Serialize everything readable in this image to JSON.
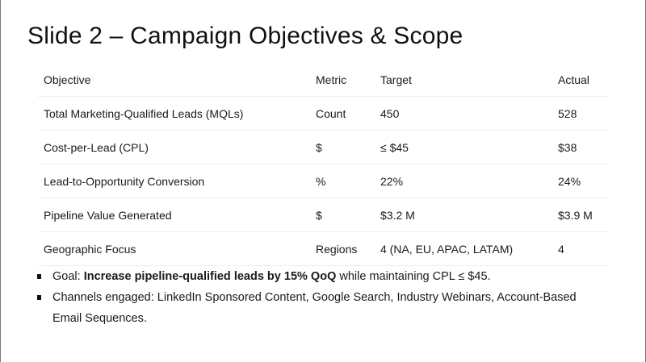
{
  "title": "Slide 2 – Campaign Objectives & Scope",
  "table": {
    "headers": [
      "Objective",
      "Metric",
      "Target",
      "Actual"
    ],
    "rows": [
      [
        "Total Marketing-Qualified Leads (MQLs)",
        "Count",
        "450",
        "528"
      ],
      [
        "Cost-per-Lead (CPL)",
        "$",
        "≤ $45",
        "$38"
      ],
      [
        "Lead-to-Opportunity Conversion",
        "%",
        "22%",
        "24%"
      ],
      [
        "Pipeline Value Generated",
        "$",
        "$3.2 M",
        "$3.9 M"
      ],
      [
        "Geographic Focus",
        "Regions",
        "4 (NA, EU, APAC, LATAM)",
        "4"
      ]
    ]
  },
  "bullets": {
    "goal_prefix": "Goal: ",
    "goal_bold": "Increase pipeline-qualified leads by 15% QoQ",
    "goal_suffix": " while maintaining CPL ≤ $45.",
    "channels": "Channels engaged: LinkedIn Sponsored Content, Google Search, Industry Webinars, Account-Based Email Sequences."
  }
}
